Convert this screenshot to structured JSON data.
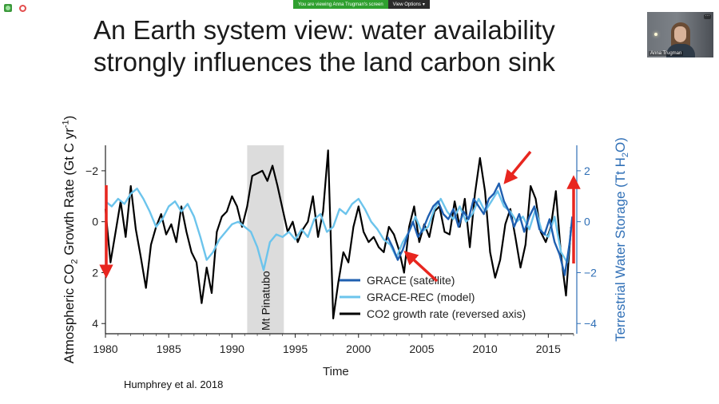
{
  "window": {
    "share_message": "You are viewing Anna Trugman's screen",
    "view_options": "View Options",
    "view_options_icon": "chevron-down-icon"
  },
  "video": {
    "participant_name": "Anna Trugman"
  },
  "slide": {
    "title_line1": "An Earth system view: water availability",
    "title_line2": "strongly influences the land carbon sink",
    "citation": "Humphrey et al. 2018"
  },
  "chart_data": {
    "type": "line",
    "xlabel": "Time",
    "ylabel_left": "Atmospheric CO2 Growth Rate (Gt C yr-1)",
    "ylabel_right": "Terrestrial Water Storage (Tt H2O)",
    "x_ticks": [
      "1980",
      "1985",
      "1990",
      "1995",
      "2000",
      "2005",
      "2010",
      "2015"
    ],
    "xlim": [
      1980,
      2017
    ],
    "ylim_left_reversed": [
      4.4,
      -3.0
    ],
    "yticks_left": [
      "−2",
      "0",
      "2",
      "4"
    ],
    "yticks_left_values": [
      -2,
      0,
      2,
      4
    ],
    "ylim_right": [
      -4.4,
      3.0
    ],
    "yticks_right": [
      "2",
      "0",
      "−2",
      "−4"
    ],
    "yticks_right_values": [
      2,
      0,
      -2,
      -4
    ],
    "shaded_region": {
      "label": "Mt Pinatubo",
      "x_start": 1991.2,
      "x_end": 1994.1
    },
    "legend": {
      "placement": "bottom-center",
      "entries": [
        {
          "name": "GRACE (satellite)",
          "color": "#1f5fb0"
        },
        {
          "name": "GRACE-REC (model)",
          "color": "#6cc4ec"
        },
        {
          "name": "CO2 growth rate (reversed axis)",
          "color": "#000000"
        }
      ]
    },
    "series": [
      {
        "name": "CO2 growth rate (reversed axis)",
        "color": "#000000",
        "axis": "left",
        "x": [
          1980.0,
          1980.4,
          1980.8,
          1981.2,
          1981.6,
          1982.0,
          1982.4,
          1982.8,
          1983.2,
          1983.6,
          1984.0,
          1984.4,
          1984.8,
          1985.2,
          1985.6,
          1986.0,
          1986.4,
          1986.8,
          1987.2,
          1987.6,
          1988.0,
          1988.4,
          1988.8,
          1989.2,
          1989.6,
          1990.0,
          1990.4,
          1990.8,
          1991.2,
          1991.6,
          1992.0,
          1992.4,
          1992.8,
          1993.2,
          1993.6,
          1994.0,
          1994.4,
          1994.8,
          1995.2,
          1995.6,
          1996.0,
          1996.4,
          1996.8,
          1997.2,
          1997.6,
          1998.0,
          1998.4,
          1998.8,
          1999.2,
          1999.6,
          2000.0,
          2000.4,
          2000.8,
          2001.2,
          2001.6,
          2002.0,
          2002.4,
          2002.8,
          2003.2,
          2003.6,
          2004.0,
          2004.4,
          2004.8,
          2005.2,
          2005.6,
          2006.0,
          2006.4,
          2006.8,
          2007.2,
          2007.6,
          2008.0,
          2008.4,
          2008.8,
          2009.2,
          2009.6,
          2010.0,
          2010.4,
          2010.8,
          2011.2,
          2011.6,
          2012.0,
          2012.4,
          2012.8,
          2013.2,
          2013.6,
          2014.0,
          2014.4,
          2014.8,
          2015.2,
          2015.6,
          2016.0,
          2016.4,
          2016.8
        ],
        "y": [
          -0.5,
          1.6,
          0.4,
          -0.8,
          0.6,
          -1.4,
          0.3,
          1.4,
          2.6,
          0.9,
          0.2,
          -0.3,
          0.5,
          0.1,
          0.8,
          -0.6,
          0.4,
          1.2,
          1.6,
          3.2,
          1.8,
          2.8,
          0.4,
          -0.2,
          -0.4,
          -1.0,
          -0.6,
          0.2,
          -0.6,
          -1.8,
          -1.9,
          -2.0,
          -1.6,
          -2.2,
          -1.4,
          -0.5,
          0.4,
          0.0,
          0.8,
          0.3,
          0.0,
          -1.0,
          0.6,
          -0.4,
          -2.8,
          3.8,
          2.4,
          1.2,
          1.6,
          0.2,
          -0.6,
          0.4,
          0.8,
          0.6,
          1.0,
          1.2,
          0.2,
          0.5,
          1.1,
          2.0,
          0.2,
          -0.6,
          0.8,
          0.1,
          0.6,
          -0.4,
          -0.6,
          0.4,
          0.5,
          -0.8,
          0.2,
          -0.9,
          1.0,
          -1.1,
          -2.5,
          -1.2,
          1.2,
          2.2,
          1.5,
          0.1,
          -0.5,
          0.6,
          1.8,
          0.9,
          -1.4,
          -0.9,
          0.4,
          0.8,
          0.2,
          -1.2,
          1.3,
          2.9,
          0.2
        ]
      },
      {
        "name": "GRACE-REC (model)",
        "color": "#6cc4ec",
        "axis": "right",
        "x": [
          1980.0,
          1980.5,
          1981.0,
          1981.5,
          1982.0,
          1982.5,
          1983.0,
          1983.5,
          1984.0,
          1984.5,
          1985.0,
          1985.5,
          1986.0,
          1986.5,
          1987.0,
          1987.5,
          1988.0,
          1988.5,
          1989.0,
          1989.5,
          1990.0,
          1990.5,
          1991.0,
          1991.5,
          1992.0,
          1992.5,
          1993.0,
          1993.5,
          1994.0,
          1994.5,
          1995.0,
          1995.5,
          1996.0,
          1996.5,
          1997.0,
          1997.5,
          1998.0,
          1998.5,
          1999.0,
          1999.5,
          2000.0,
          2000.5,
          2001.0,
          2001.5,
          2002.0,
          2002.5,
          2003.0,
          2003.5,
          2004.0,
          2004.5,
          2005.0,
          2005.5,
          2006.0,
          2006.5,
          2007.0,
          2007.5,
          2008.0,
          2008.5,
          2009.0,
          2009.5,
          2010.0,
          2010.5,
          2011.0,
          2011.5,
          2012.0,
          2012.5,
          2013.0,
          2013.5,
          2014.0,
          2014.5,
          2015.0,
          2015.5,
          2016.0,
          2016.5,
          2016.9
        ],
        "y": [
          0.8,
          0.6,
          0.9,
          0.7,
          1.1,
          1.3,
          0.9,
          0.4,
          -0.2,
          0.1,
          0.6,
          0.8,
          0.4,
          0.7,
          0.2,
          -0.6,
          -1.5,
          -1.2,
          -0.7,
          -0.4,
          -0.1,
          0.0,
          -0.2,
          -0.4,
          -1.0,
          -1.9,
          -0.8,
          -0.5,
          -0.6,
          -0.4,
          -0.7,
          -0.3,
          -0.6,
          0.1,
          0.3,
          -0.4,
          -0.2,
          0.5,
          0.3,
          0.7,
          0.9,
          0.5,
          0.0,
          -0.3,
          -0.7,
          -0.9,
          -1.4,
          -0.8,
          -0.4,
          0.2,
          -0.4,
          -0.2,
          0.5,
          0.9,
          0.4,
          0.1,
          0.6,
          0.0,
          0.3,
          0.9,
          0.4,
          0.8,
          1.2,
          0.6,
          0.4,
          0.0,
          0.2,
          -0.3,
          0.5,
          -0.4,
          -0.6,
          0.2,
          -1.2,
          -1.6,
          0.1
        ]
      },
      {
        "name": "GRACE (satellite)",
        "color": "#1f5fb0",
        "axis": "right",
        "x": [
          2002.3,
          2002.7,
          2003.1,
          2003.5,
          2003.9,
          2004.3,
          2004.7,
          2005.1,
          2005.5,
          2005.9,
          2006.3,
          2006.7,
          2007.1,
          2007.5,
          2007.9,
          2008.3,
          2008.7,
          2009.1,
          2009.5,
          2009.9,
          2010.3,
          2010.7,
          2011.1,
          2011.5,
          2011.9,
          2012.3,
          2012.7,
          2013.1,
          2013.5,
          2013.9,
          2014.3,
          2014.7,
          2015.1,
          2015.5,
          2015.9,
          2016.3,
          2016.7,
          2016.9
        ],
        "y": [
          -0.6,
          -1.0,
          -1.5,
          -1.1,
          -0.5,
          0.0,
          -0.6,
          -0.3,
          0.2,
          0.6,
          0.8,
          0.3,
          0.1,
          0.5,
          -0.2,
          0.4,
          0.1,
          0.9,
          0.6,
          0.3,
          0.9,
          1.1,
          1.5,
          0.8,
          0.4,
          -0.2,
          0.3,
          -0.4,
          0.2,
          0.6,
          -0.3,
          -0.5,
          0.1,
          -0.8,
          -1.3,
          -2.1,
          -0.8,
          0.2
        ]
      }
    ]
  },
  "annotations": {
    "arrows": "red-arrow-icon"
  }
}
